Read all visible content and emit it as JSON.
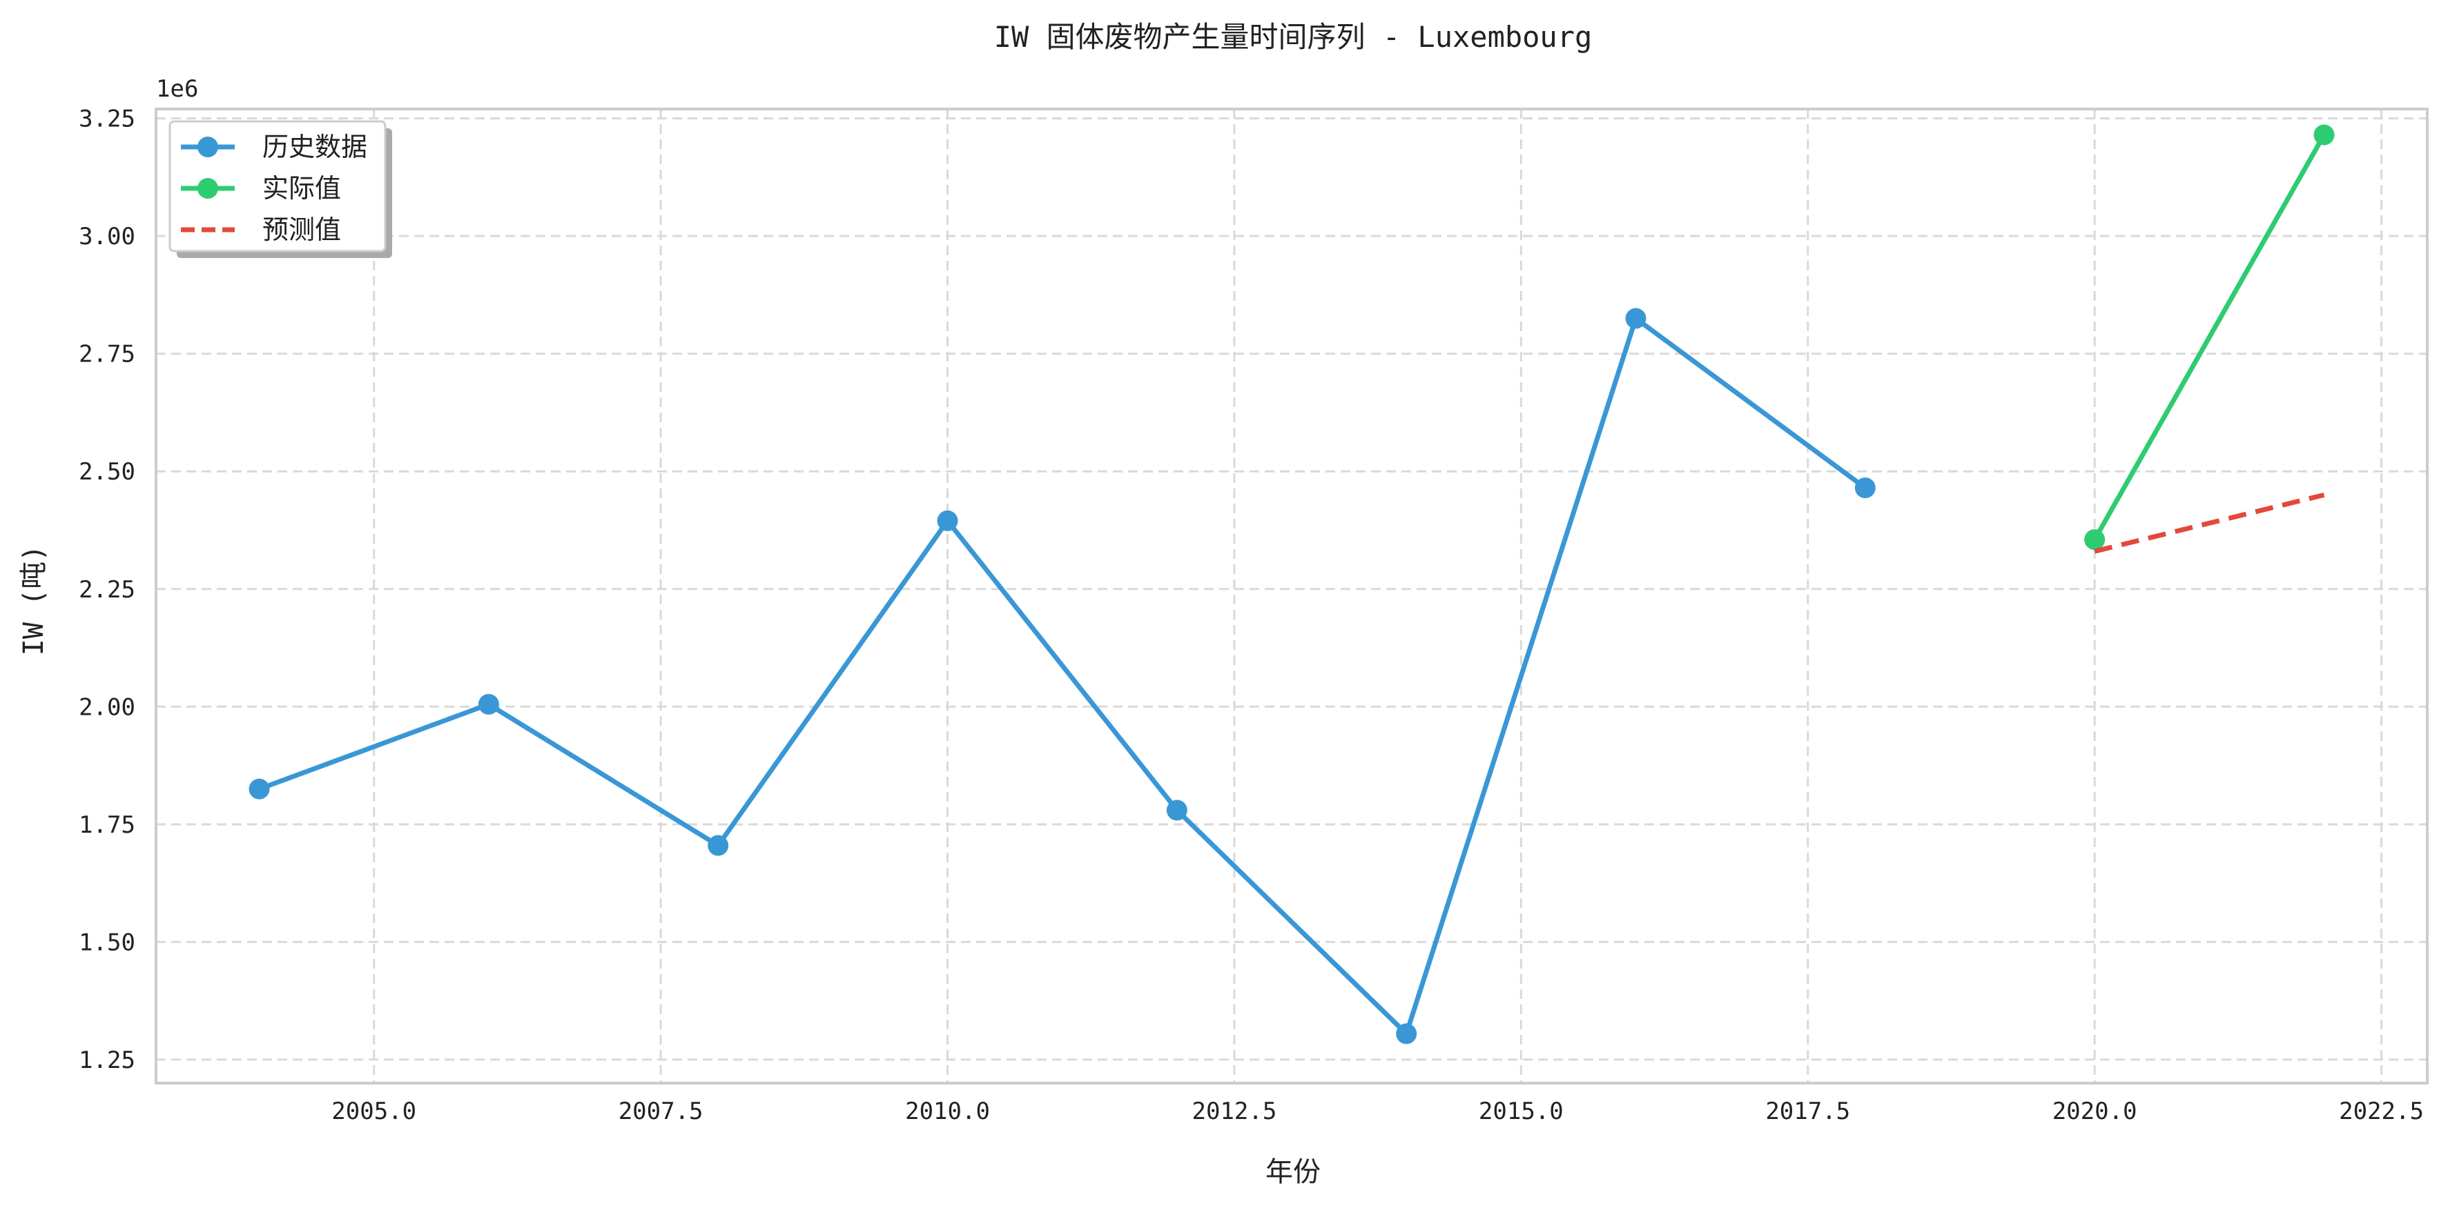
{
  "chart_data": {
    "type": "line",
    "title": "IW 固体废物产生量时间序列 - Luxembourg",
    "xlabel": "年份",
    "ylabel": "IW (吨)",
    "y_offset_label": "1e6",
    "xlim": [
      2003.1,
      2022.9
    ],
    "ylim": [
      1.2,
      3.27
    ],
    "x_ticks": [
      2005.0,
      2007.5,
      2010.0,
      2012.5,
      2015.0,
      2017.5,
      2020.0,
      2022.5
    ],
    "x_tick_labels": [
      "2005.0",
      "2007.5",
      "2010.0",
      "2012.5",
      "2015.0",
      "2017.5",
      "2020.0",
      "2022.5"
    ],
    "y_ticks": [
      1.25,
      1.5,
      1.75,
      2.0,
      2.25,
      2.5,
      2.75,
      3.0,
      3.25
    ],
    "y_tick_labels": [
      "1.25",
      "1.50",
      "1.75",
      "2.00",
      "2.25",
      "2.50",
      "2.75",
      "3.00",
      "3.25"
    ],
    "grid": true,
    "legend_position": "top-left",
    "series": [
      {
        "name": "历史数据",
        "color": "#3a97d6",
        "style": "solid",
        "markers": true,
        "x": [
          2004,
          2006,
          2008,
          2010,
          2012,
          2014,
          2016,
          2018
        ],
        "y": [
          1.825,
          2.005,
          1.705,
          2.395,
          1.78,
          1.305,
          2.825,
          2.465
        ]
      },
      {
        "name": "实际值",
        "color": "#2ecc71",
        "style": "solid",
        "markers": true,
        "x": [
          2020,
          2022
        ],
        "y": [
          2.355,
          3.215
        ]
      },
      {
        "name": "预测值",
        "color": "#e2493b",
        "style": "dashed",
        "markers": false,
        "x": [
          2020,
          2022
        ],
        "y": [
          2.33,
          2.45
        ]
      }
    ]
  }
}
